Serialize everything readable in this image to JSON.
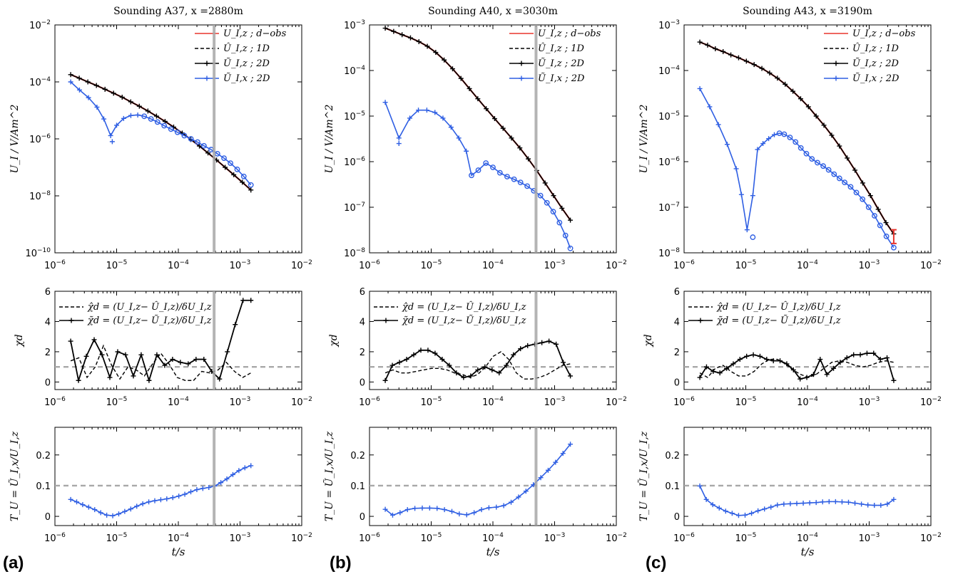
{
  "figure": {
    "panel_labels": [
      "(a)",
      "(b)",
      "(c)"
    ],
    "x_axis_label": "t/s",
    "ylabel_main": "U_I / V/Am^2",
    "ylabel_chi": "χd",
    "ylabel_ratio": "T_U = Ũ_I,x/U_I,z",
    "legend_main": [
      "U_I,z ; d−obs",
      "Û_I,z ; 1D",
      "Ũ_I,z ; 2D",
      "Ũ_I,x ; 2D"
    ],
    "legend_chi": [
      "χ̂d = (U_I,z− Û_I,z)/δU_I,z",
      "χ̃d = (U_I,z− Ũ_I,z)/δU_I,z"
    ],
    "colors": {
      "observed": "#e8352d",
      "model": "#000000",
      "horizontal": "#2f5fe3",
      "reference": "#a8a8a8"
    },
    "x_ticks": [
      "10^-6",
      "10^-5",
      "10^-4",
      "10^-3",
      "10^-2"
    ]
  },
  "chart_data": [
    {
      "type": "line",
      "panel": "(a)",
      "title": "Sounding A37, x =2880m",
      "xscale": "log",
      "xlim": [
        1e-06,
        0.01
      ],
      "marker_time": 0.00038,
      "top": {
        "yscale": "log",
        "ylim": [
          1e-10,
          0.01
        ],
        "y_ticks": [
          "10^-10",
          "10^-8",
          "10^-6",
          "10^-4",
          "10^-2"
        ],
        "t": [
          1.8e-06,
          0.0015
        ],
        "Uz": [
          0.00018,
          0.000135,
          0.0001,
          7.5e-05,
          5.5e-05,
          4e-05,
          2.9e-05,
          2e-05,
          1.4e-05,
          9.5e-06,
          6.3e-06,
          4.1e-06,
          2.6e-06,
          1.6e-06,
          9.5e-07,
          5.6e-07,
          3.2e-07,
          1.8e-07,
          1e-07,
          5.5e-08,
          3e-08,
          1.6e-08
        ],
        "Ux_t": [
          1.8e-06,
          2.5e-06,
          3.5e-06,
          4.8e-06,
          6.2e-06,
          8e-06,
          1e-05,
          1.3e-05,
          1.7e-05,
          2.2e-05,
          2.8e-05,
          3.6e-05,
          4.6e-05,
          5.9e-05,
          7.6e-05,
          9.7e-05,
          0.000125,
          0.00016,
          0.000205,
          0.00026,
          0.00034,
          0.00043,
          0.00055,
          0.0007,
          0.0009,
          0.00115,
          0.0015
        ],
        "Ux": [
          0.0001,
          5.2e-05,
          2.8e-05,
          1.3e-05,
          5e-06,
          1.3e-06,
          3e-06,
          5.2e-06,
          6.6e-06,
          6.9e-06,
          6.2e-06,
          5e-06,
          3.9e-06,
          2.9e-06,
          2.2e-06,
          1.7e-06,
          1.3e-06,
          1e-06,
          7.7e-07,
          5.7e-07,
          4.2e-07,
          3e-07,
          2.1e-07,
          1.4e-07,
          8.5e-08,
          4.8e-08,
          2.4e-08
        ],
        "Ux_outlier": [
          8.5e-06,
          8e-07
        ],
        "error_bar": null
      },
      "chi": {
        "ylim": [
          -0.5,
          6
        ],
        "y_ticks": [
          "0",
          "2",
          "4",
          "6"
        ],
        "t": [
          1.8e-06,
          0.0015
        ],
        "chi_1d": [
          1.4,
          1.6,
          0.3,
          1.0,
          2.4,
          1.1,
          0.2,
          1.0,
          0.8,
          0.4,
          1.2,
          1.9,
          1.2,
          0.3,
          0.1,
          0.1,
          0.7,
          0.6,
          0.8,
          1.3,
          0.7,
          0.3,
          0.6
        ],
        "chi_2d": [
          2.7,
          0.1,
          1.7,
          2.8,
          1.8,
          0.3,
          2.0,
          1.8,
          0.4,
          1.8,
          0.1,
          1.8,
          1.1,
          1.5,
          1.3,
          1.2,
          1.5,
          1.5,
          0.7,
          0.2,
          2.0,
          3.8,
          5.4,
          5.4
        ],
        "ref": 1
      },
      "ratio": {
        "ylim": [
          -0.03,
          0.29
        ],
        "y_ticks": [
          "0",
          "0.1",
          "0.2"
        ],
        "t": [
          1.8e-06,
          0.0015
        ],
        "values": [
          0.055,
          0.047,
          0.038,
          0.03,
          0.022,
          0.012,
          0.004,
          0.002,
          0.008,
          0.016,
          0.024,
          0.033,
          0.041,
          0.047,
          0.051,
          0.054,
          0.057,
          0.061,
          0.066,
          0.072,
          0.08,
          0.087,
          0.091,
          0.094,
          0.099,
          0.11,
          0.122,
          0.136,
          0.149,
          0.158,
          0.165
        ],
        "ref": 0.1
      }
    },
    {
      "type": "line",
      "panel": "(b)",
      "title": "Sounding A40, x =3030m",
      "xscale": "log",
      "xlim": [
        1e-06,
        0.01
      ],
      "marker_time": 0.0005,
      "top": {
        "yscale": "log",
        "ylim": [
          1e-08,
          0.001
        ],
        "y_ticks": [
          "10^-8",
          "10^-7",
          "10^-6",
          "10^-5",
          "10^-4",
          "10^-3"
        ],
        "t": [
          1.8e-06,
          0.0018
        ],
        "Uz": [
          0.00085,
          0.00072,
          0.00061,
          0.00052,
          0.00043,
          0.00034,
          0.00025,
          0.00017,
          0.000109,
          6.7e-05,
          4e-05,
          2.4e-05,
          1.45e-05,
          8.8e-06,
          5.4e-06,
          3.3e-06,
          2e-06,
          1.15e-06,
          6.4e-07,
          3.4e-07,
          1.8e-07,
          9.5e-08,
          5.2e-08
        ],
        "Ux_t": [
          1.8e-06,
          3e-06,
          4.5e-06,
          6.2e-06,
          8.5e-06,
          1.15e-05,
          1.55e-05,
          2.1e-05,
          2.8e-05,
          3.7e-05,
          4.5e-05,
          5.8e-05,
          7.7e-05,
          0.0001,
          0.00013,
          0.00017,
          0.00022,
          0.00028,
          0.00036,
          0.00046,
          0.00059,
          0.00075,
          0.00095,
          0.0012,
          0.0015,
          0.0018
        ],
        "Ux": [
          2e-05,
          3.3e-06,
          9e-06,
          1.35e-05,
          1.35e-05,
          1.2e-05,
          9e-06,
          5.7e-06,
          3.3e-06,
          1.7e-06,
          5e-07,
          6.5e-07,
          9.3e-07,
          7.5e-07,
          5.7e-07,
          4.7e-07,
          4.1e-07,
          3.5e-07,
          2.9e-07,
          2.3e-07,
          1.8e-07,
          1.25e-07,
          8e-08,
          4.6e-08,
          2.4e-08,
          1.25e-08
        ],
        "Ux_outlier": [
          3e-06,
          2.5e-06
        ],
        "error_bar": null
      },
      "chi": {
        "ylim": [
          -0.5,
          6
        ],
        "y_ticks": [
          "0",
          "2",
          "4",
          "6"
        ],
        "t": [
          1.8e-06,
          0.0018
        ],
        "chi_1d": [
          0.6,
          0.8,
          0.6,
          0.6,
          0.7,
          0.8,
          0.9,
          0.9,
          0.8,
          0.6,
          0.5,
          0.3,
          0.5,
          1.0,
          1.7,
          2.0,
          1.5,
          0.6,
          0.2,
          0.2,
          0.3,
          0.5,
          0.8,
          1.1,
          1.2
        ],
        "chi_2d": [
          0.1,
          1.1,
          1.3,
          1.5,
          1.8,
          2.1,
          2.1,
          1.9,
          1.5,
          1.1,
          0.6,
          0.3,
          0.4,
          0.8,
          1.0,
          0.8,
          0.6,
          1.1,
          1.8,
          2.2,
          2.4,
          2.5,
          2.6,
          2.7,
          2.5,
          1.3,
          0.4
        ],
        "ref": 1
      },
      "ratio": {
        "ylim": [
          -0.03,
          0.29
        ],
        "y_ticks": [
          "0",
          "0.1",
          "0.2"
        ],
        "t": [
          1.8e-06,
          0.0018
        ],
        "values": [
          0.023,
          0.004,
          0.012,
          0.022,
          0.026,
          0.027,
          0.027,
          0.026,
          0.022,
          0.016,
          0.008,
          0.005,
          0.012,
          0.022,
          0.028,
          0.03,
          0.035,
          0.046,
          0.063,
          0.082,
          0.103,
          0.126,
          0.15,
          0.176,
          0.205,
          0.235
        ],
        "ref": 0.1
      }
    },
    {
      "type": "line",
      "panel": "(c)",
      "title": "Sounding A43, x =3190m",
      "xscale": "log",
      "xlim": [
        1e-06,
        0.01
      ],
      "marker_time": null,
      "top": {
        "yscale": "log",
        "ylim": [
          1e-08,
          0.001
        ],
        "y_ticks": [
          "10^-8",
          "10^-7",
          "10^-6",
          "10^-5",
          "10^-4",
          "10^-3"
        ],
        "t": [
          1.8e-06,
          0.0025
        ],
        "Uz": [
          0.00042,
          0.00036,
          0.0003,
          0.00026,
          0.00022,
          0.00019,
          0.00016,
          0.000135,
          0.000111,
          8.8e-05,
          6.8e-05,
          5e-05,
          3.5e-05,
          2.4e-05,
          1.6e-05,
          1e-05,
          6.3e-06,
          3.8e-06,
          2.2e-06,
          1.2e-06,
          6.5e-07,
          3.4e-07,
          1.8e-07,
          9e-08,
          4.6e-08,
          2.6e-08
        ],
        "Ux_t": [
          1.8e-06,
          2.6e-06,
          3.6e-06,
          5e-06,
          7e-06,
          8.5e-06,
          1.05e-05,
          1.3e-05,
          1.55e-05,
          1.9e-05,
          2.35e-05,
          2.9e-05,
          3.5e-05,
          4.2e-05,
          5.2e-05,
          6.4e-05,
          7.8e-05,
          9.6e-05,
          0.000118,
          0.000145,
          0.00018,
          0.00022,
          0.00027,
          0.00033,
          0.0004,
          0.0005,
          0.00062,
          0.00078,
          0.00098,
          0.00122,
          0.0015,
          0.0019,
          0.0025
        ],
        "Ux": [
          4e-05,
          1.6e-05,
          6.5e-06,
          2.4e-06,
          7e-07,
          1.9e-07,
          3.2e-08,
          1.8e-07,
          1.85e-06,
          2.5e-06,
          3.2e-06,
          3.9e-06,
          4.2e-06,
          4e-06,
          3.4e-06,
          2.7e-06,
          2e-06,
          1.5e-06,
          1.15e-06,
          9.5e-07,
          8e-07,
          6.6e-07,
          5.3e-07,
          4.3e-07,
          3.5e-07,
          2.8e-07,
          2.1e-07,
          1.5e-07,
          1e-07,
          6.5e-08,
          4e-08,
          2.3e-08,
          1.3e-08
        ],
        "Ux_outlier": [
          1.3e-05,
          2.2e-08
        ],
        "error_bar": [
          0.0025,
          1.6e-08,
          3.2e-08
        ]
      },
      "chi": {
        "ylim": [
          -0.5,
          6
        ],
        "y_ticks": [
          "0",
          "2",
          "4",
          "6"
        ],
        "t": [
          1.8e-06,
          0.0025
        ],
        "chi_1d": [
          0.6,
          0.3,
          0.9,
          1.1,
          0.7,
          0.4,
          0.4,
          0.7,
          1.2,
          1.5,
          1.5,
          1.2,
          0.8,
          0.5,
          0.3,
          0.5,
          0.9,
          1.3,
          1.4,
          1.3,
          1.1,
          1.0,
          1.1,
          1.3,
          1.4,
          1.3
        ],
        "chi_2d": [
          0.3,
          1.0,
          0.7,
          0.6,
          0.9,
          1.2,
          1.5,
          1.7,
          1.8,
          1.7,
          1.5,
          1.4,
          1.4,
          1.2,
          0.8,
          0.2,
          0.3,
          0.5,
          1.5,
          0.5,
          0.9,
          1.3,
          1.6,
          1.8,
          1.8,
          1.9,
          1.9,
          1.5,
          1.6,
          0.1
        ],
        "ref": 1
      },
      "ratio": {
        "ylim": [
          -0.03,
          0.29
        ],
        "y_ticks": [
          "0",
          "0.1",
          "0.2"
        ],
        "t": [
          1.8e-06,
          0.0025
        ],
        "values": [
          0.099,
          0.055,
          0.038,
          0.027,
          0.017,
          0.01,
          0.003,
          0.004,
          0.01,
          0.018,
          0.024,
          0.03,
          0.037,
          0.04,
          0.041,
          0.042,
          0.043,
          0.044,
          0.045,
          0.047,
          0.048,
          0.048,
          0.047,
          0.046,
          0.043,
          0.04,
          0.037,
          0.036,
          0.036,
          0.04,
          0.055
        ],
        "ref": 0.1
      }
    }
  ]
}
